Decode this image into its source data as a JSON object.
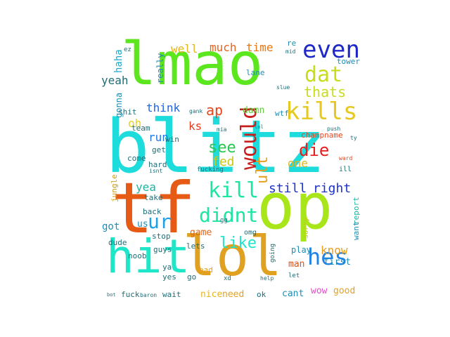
{
  "words": [
    {
      "text": "blitz",
      "color": "#1fdcdc"
    },
    {
      "text": "lmao",
      "color": "#5ce61e"
    },
    {
      "text": "tf",
      "color": "#e65a16"
    },
    {
      "text": "op",
      "color": "#a8e61a"
    },
    {
      "text": "lol",
      "color": "#e0a020"
    },
    {
      "text": "hit",
      "color": "#1ee6c8"
    },
    {
      "text": "even",
      "color": "#1e28c8"
    },
    {
      "text": "kills",
      "color": "#e6c81e"
    },
    {
      "text": "dat",
      "color": "#c8dc1e"
    },
    {
      "text": "thats",
      "color": "#c8dc1e"
    },
    {
      "text": "would",
      "color": "#c81e1e"
    },
    {
      "text": "kill",
      "color": "#1ee6a0"
    },
    {
      "text": "didnt",
      "color": "#1ee6a0"
    },
    {
      "text": "ur",
      "color": "#1ea0e6"
    },
    {
      "text": "hes",
      "color": "#1e82e6"
    },
    {
      "text": "see",
      "color": "#28c850"
    },
    {
      "text": "die",
      "color": "#e61e1e"
    },
    {
      "text": "like",
      "color": "#1ee6c8"
    },
    {
      "text": "ult",
      "color": "#e6a01e"
    },
    {
      "text": "still",
      "color": "#1e32c8"
    },
    {
      "text": "right",
      "color": "#1e32c8"
    },
    {
      "text": "fed",
      "color": "#c8c81e"
    },
    {
      "text": "one",
      "color": "#e6b41e"
    },
    {
      "text": "ap",
      "color": "#e6461e"
    },
    {
      "text": "know",
      "color": "#e6a01e"
    },
    {
      "text": "run",
      "color": "#1e78e6"
    },
    {
      "text": "oh",
      "color": "#e6d21e"
    },
    {
      "text": "think",
      "color": "#1e64e6"
    },
    {
      "text": "ks",
      "color": "#e63c1e"
    },
    {
      "text": "much",
      "color": "#e6641e"
    },
    {
      "text": "time",
      "color": "#e67814"
    },
    {
      "text": "well",
      "color": "#e6b41e"
    },
    {
      "text": "damn",
      "color": "#64c83c"
    },
    {
      "text": "yeah",
      "color": "#1e6e78"
    },
    {
      "text": "haha",
      "color": "#1eaac8"
    },
    {
      "text": "yea",
      "color": "#1eb4a0"
    },
    {
      "text": "got",
      "color": "#1e8cb4"
    },
    {
      "text": "us",
      "color": "#1e8cb4"
    },
    {
      "text": "game",
      "color": "#e66414"
    },
    {
      "text": "first",
      "color": "#1e8cb4"
    },
    {
      "text": "man",
      "color": "#e65014"
    },
    {
      "text": "wow",
      "color": "#e64ec8"
    },
    {
      "text": "good",
      "color": "#e6a01e"
    },
    {
      "text": "cant",
      "color": "#1e8cb4"
    },
    {
      "text": "need",
      "color": "#e6a01e"
    },
    {
      "text": "nice",
      "color": "#e6b41e"
    },
    {
      "text": "play",
      "color": "#1e8cb4"
    },
    {
      "text": "really",
      "color": "#1e8cb4"
    },
    {
      "text": "gonna",
      "color": "#1e8cb4"
    },
    {
      "text": "jungle",
      "color": "#c8a01e"
    },
    {
      "text": "report",
      "color": "#1eb4a0"
    },
    {
      "text": "want",
      "color": "#1e8cb4"
    },
    {
      "text": "sorry",
      "color": "#c8c81e"
    },
    {
      "text": "guys",
      "color": "#1e6e78"
    },
    {
      "text": "lets",
      "color": "#1e6e78"
    },
    {
      "text": "bad",
      "color": "#e6a01e"
    },
    {
      "text": "go",
      "color": "#1e6e78"
    },
    {
      "text": "ya",
      "color": "#1e6e78"
    },
    {
      "text": "dude",
      "color": "#1e6e78"
    },
    {
      "text": "wtf",
      "color": "#1e8cb4"
    },
    {
      "text": "lane",
      "color": "#1e8cb4"
    },
    {
      "text": "tower",
      "color": "#1e8cb4"
    },
    {
      "text": "champname",
      "color": "#e6461e"
    },
    {
      "text": "team",
      "color": "#1e6e78"
    },
    {
      "text": "shit",
      "color": "#1e6e78"
    },
    {
      "text": "win",
      "color": "#1e6e78"
    },
    {
      "text": "get",
      "color": "#1e6e78"
    },
    {
      "text": "come",
      "color": "#1e6e78"
    },
    {
      "text": "hard",
      "color": "#1e6e78"
    },
    {
      "text": "back",
      "color": "#1e6e78"
    },
    {
      "text": "take",
      "color": "#1e6e78"
    },
    {
      "text": "stop",
      "color": "#1e6e78"
    },
    {
      "text": "noob",
      "color": "#1e6e78"
    },
    {
      "text": "yes",
      "color": "#1e6e78"
    },
    {
      "text": "fuck",
      "color": "#1e6e78"
    },
    {
      "text": "wait",
      "color": "#1e6e78"
    },
    {
      "text": "ok",
      "color": "#1e6e78"
    },
    {
      "text": "xd",
      "color": "#1e6e78"
    },
    {
      "text": "let",
      "color": "#1e6e78"
    },
    {
      "text": "going",
      "color": "#1e6e78"
    },
    {
      "text": "gg",
      "color": "#1e6e78"
    },
    {
      "text": "omg",
      "color": "#1e6e78"
    },
    {
      "text": "push",
      "color": "#1e6e78"
    },
    {
      "text": "ill",
      "color": "#1e6e78"
    },
    {
      "text": "ward",
      "color": "#e6461e"
    },
    {
      "text": "ez",
      "color": "#1e6e78"
    },
    {
      "text": "re",
      "color": "#1e8cb4"
    },
    {
      "text": "mid",
      "color": "#1e6e78"
    },
    {
      "text": "slue",
      "color": "#1e6e78"
    },
    {
      "text": "gank",
      "color": "#1e6e78"
    },
    {
      "text": "mia",
      "color": "#1e6e78"
    },
    {
      "text": "lol",
      "color": "#1e6e78"
    },
    {
      "text": "ty",
      "color": "#1e6e78"
    },
    {
      "text": "isnt",
      "color": "#1e6e78"
    },
    {
      "text": "fucking",
      "color": "#1e6e78"
    },
    {
      "text": "help",
      "color": "#1e6e78"
    },
    {
      "text": "baron",
      "color": "#1e6e78"
    },
    {
      "text": "bot",
      "color": "#1e6e78"
    }
  ]
}
